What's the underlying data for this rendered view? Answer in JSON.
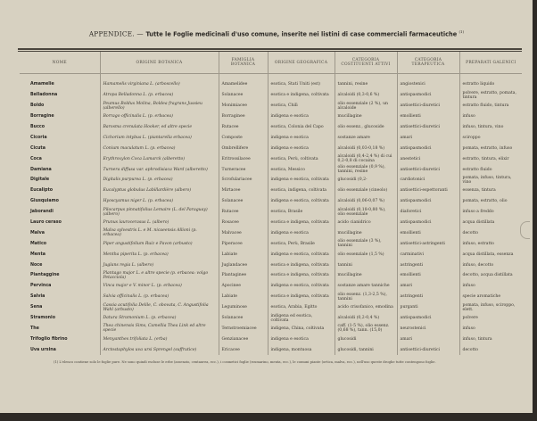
{
  "title": {
    "lead": "APPENDICE. — ",
    "rest": "Tutte le Foglie medicinali d'uso comune, inserite nei listini di case commerciali farmaceutiche",
    "note_mark": "(1)"
  },
  "columns": [
    "Nome",
    "Origine botanica",
    "Famiglia botanica",
    "Origine geografica",
    "Categoria costituenti attivi",
    "Categoria terapeutica",
    "Preparati galenici"
  ],
  "rows": [
    [
      "Amamelie",
      "Hamamelis virginiana L. (arboscello)",
      "Amamelidee",
      "esotica, Stati Uniti (est)",
      "tannini, resine",
      "angiostenici",
      "estratto liquido"
    ],
    [
      "Belladonna",
      "Atropa Belladonna L. (p. erbacea)",
      "Solanacee",
      "esotica e indigena, coltivata",
      "alcaloidi (0,3-0,6 %)",
      "antispasmodici",
      "polvere, estratto, pomata, tintura"
    ],
    [
      "Boldo",
      "Peumus Boldus Molina, Boldea fragrans Jussieu (alberello)",
      "Monimiacee",
      "esotica, Chilì",
      "olio essenziale (2 %), un alcaloide",
      "antisettici-diuretici",
      "estratto fluido, tintura"
    ],
    [
      "Borragine",
      "Borrago officinalis L. (p. erbacea)",
      "Borraginee",
      "indigena e esotica",
      "mucillagine",
      "emollienti",
      "infuso"
    ],
    [
      "Bucco",
      "Barosma crenulata Hooker, ed altre specie",
      "Rutacee",
      "esotica, Colonia del Capo",
      "olio essenz., glucoside",
      "antisettici-diuretici",
      "infuso, tintura, vino"
    ],
    [
      "Cicoria",
      "Cichorium intybus L. (piantarella erbacea)",
      "Composte",
      "indigena e esotica",
      "sostanze amare",
      "amari",
      "sciroppo"
    ],
    [
      "Cicuta",
      "Conium maculatum L. (p. erbacea)",
      "Ombrellifere",
      "indigena e esotica",
      "alcaloidi (0,03-0,18 %)",
      "antispasmodici",
      "pomata, estratto, infuso"
    ],
    [
      "Coca",
      "Erythroxylon Coca Lamarck (alberetto)",
      "Eritrossilacee",
      "esotica, Perù, coltivata",
      "alcaloidi (0,4-2,4 %) di cui 0,2-0,8 di cocaina",
      "anestetici",
      "estratto, tintura, elixir"
    ],
    [
      "Damiana",
      "Turnera diffusa var. aphrodisiaca Ward (alberetto)",
      "Turneracee",
      "esotica, Messico",
      "olio essenziale (0,9 %), tannini, resine",
      "antisettici-diuretici",
      "estratto fluido"
    ],
    [
      "Digitale",
      "Digitalis purpurea L. (p. erbacea)",
      "Scrofulariacee",
      "indigena e esotica, coltivata",
      "glucosidi (0,2-",
      "cardiotonici",
      "pomata, infuso, tintura, vino"
    ],
    [
      "Eucalipto",
      "Eucalyptus globulus Labillardière (albero)",
      "Mirtacee",
      "esotica, indigena, coltivata",
      "olio essenziale (cineolo)",
      "antisettici-espettoranti",
      "essenza, tintura"
    ],
    [
      "Giusquiamo",
      "Hyoscyamus niger L. (p. erbacea)",
      "Solanacee",
      "indigena e esotica, coltivata",
      "alcaloidi (0,06-0,07 %)",
      "antispasmodici",
      "pomata, estratto, olio"
    ],
    [
      "Jaborandi",
      "Pilocarpus pinnatifolius Lemaire (L. del Paraguay) (albero)",
      "Rutacee",
      "esotica, Brasile",
      "alcaloidi (0,18-0,80 %), olio essenziale",
      "diaforetici",
      "infuso a freddo"
    ],
    [
      "Lauro ceraso",
      "Prunus laurocerasus L. (albero)",
      "Rosacee",
      "esotica e indigena, coltivata",
      "acido cianidrico",
      "antispasmodici",
      "acqua distillata"
    ],
    [
      "Malva",
      "Malva sylvestris L. e M. nicaeensis Allioni (p. erbacea)",
      "Malvacee",
      "indigena e esotica",
      "mucillagine",
      "emollienti",
      "decotto"
    ],
    [
      "Matico",
      "Piper angustifolium Ruiz e Pavon (arbusto)",
      "Piperacee",
      "esotica, Perù, Brasile",
      "olio essenziale (3 %), tannini",
      "antisettici-astringenti",
      "infuso, estratto"
    ],
    [
      "Menta",
      "Mentha piperita L. (p. erbacea)",
      "Labiate",
      "indigena e esotica, coltivata",
      "olio essenziale (1,5 %)",
      "carminativi",
      "acqua distillata, essenza"
    ],
    [
      "Noce",
      "Juglans regia L. (albero)",
      "Juglandacee",
      "esotica e indigena, coltivata",
      "tannini",
      "astringenti",
      "infuso, decotto"
    ],
    [
      "Piantaggine",
      "Plantago major L. e altre specie (p. erbacea: volgo Petacciola)",
      "Plantaginee",
      "esotica e indigena, coltivata",
      "mucillagine",
      "emollienti",
      "decotto, acqua distillata"
    ],
    [
      "Pervinca",
      "Vinca major e V. minor L. (p. erbacea)",
      "Apocinee",
      "indigena e esotica, coltivata",
      "sostanze amare tanniche",
      "amari",
      "infuso"
    ],
    [
      "Salvia",
      "Salvia officinalis L. (p. erbacea)",
      "Labiate",
      "esotica e indigena, coltivata",
      "olio essenz. (1,3-2,5 %), tannini",
      "astringenti",
      "specie aromatiche"
    ],
    [
      "Sena",
      "Cassia acutifolia Delile, C. obovata, C. Angustifolia Wahl (arbusto)",
      "Leguminose",
      "esotica, Arabia, Egitto",
      "acido crisofanico, emodina",
      "purganti",
      "pomata, infuso, sciroppo, elett."
    ],
    [
      "Stramonio",
      "Datura Stramonium L. (p. erbacea)",
      "Solanacee",
      "indigena ed esotica, coltivata",
      "alcaloidi (0,2-0,4 %)",
      "antispasmodici",
      "polvere"
    ],
    [
      "The",
      "Thea chinensis Sims, Camellia Thea Link ed altre specie",
      "Ternstroemiacee",
      "indigena, China, coltivata",
      "caff. (1-5 %), olio essenz. (0,68 %), tann. (15,0)",
      "neurostenici",
      "infuso"
    ],
    [
      "Trifoglio fibrino",
      "Menyanthes trifoliata L. (erba)",
      "Genzianacee",
      "indigena e esotica",
      "glucosidi",
      "amari",
      "infuso, tintura"
    ],
    [
      "Uva ursina",
      "Arctostaphylos uva ursi Sprengel (suffrutice)",
      "Ericacee",
      "indigena, montuosa",
      "glucosidi, tannini",
      "antisettici-diuretici",
      "decotto"
    ]
  ],
  "footnote": "(1) L'elenco contiene solo le foglie pure. Ne sono quindi escluse le erbe (assenzio, centaurea, ecc.), i cosmetici foglie (rosmarino, menta, ecc.), le comuni piante (ortica, malva, ecc.), nell'uso queste droghe tutte contengono foglie."
}
